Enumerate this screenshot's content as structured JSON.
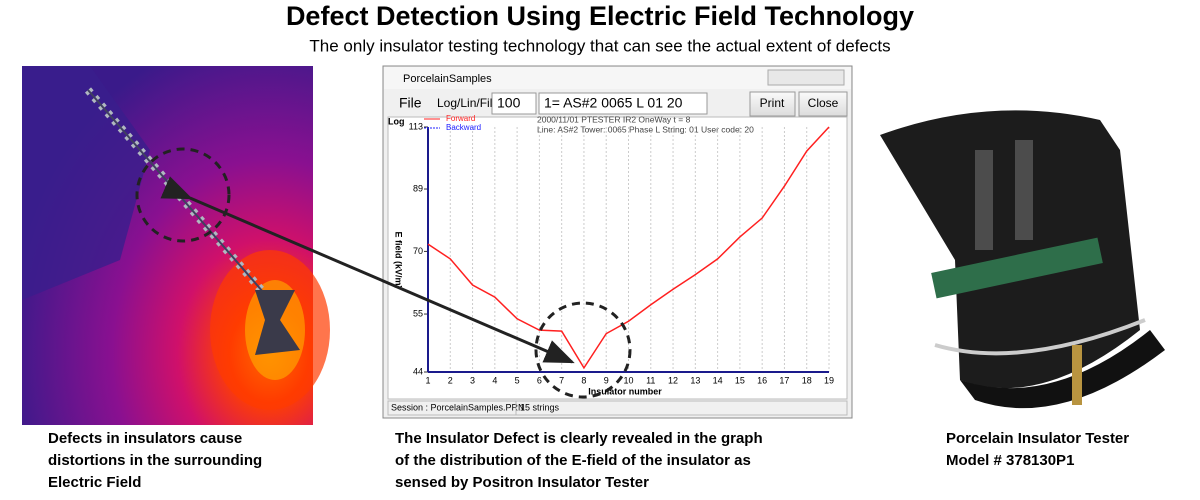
{
  "header": {
    "title": "Defect Detection Using Electric Field Technology",
    "subtitle": "The only insulator testing technology that can see the actual extent of defects"
  },
  "captions": {
    "left": [
      "Defects in insulators cause",
      "distortions in the surrounding",
      "Electric Field"
    ],
    "center": [
      "The Insulator Defect is clearly revealed in the graph",
      "of the distribution of the E-field of the insulator as",
      "sensed by Positron Insulator Tester"
    ],
    "right": [
      "Porcelain Insulator Tester",
      "Model # 378130P1"
    ]
  },
  "window": {
    "title": "PorcelainSamples",
    "menu": "File",
    "mode": "Log/Lin/Fil",
    "count": "100",
    "selection": "1= AS#2 0065 L 01 20",
    "buttons": [
      "Print",
      "Close"
    ],
    "info": [
      "2000/11/01 PTESTER IR2 OneWay    t = 8",
      "Line: AS#2 Tower: 0065 Phase L String: 01 User code: 20"
    ],
    "scale_label": "Log",
    "status": [
      "Session : PorcelainSamples.PRN",
      "15 strings"
    ]
  },
  "chart_data": {
    "type": "line",
    "x_label": "Insulator number",
    "y_label": "E field (kV/m)",
    "x": [
      1,
      2,
      3,
      4,
      5,
      6,
      7,
      8,
      9,
      10,
      11,
      12,
      13,
      14,
      15,
      16,
      17,
      18,
      19
    ],
    "series": [
      {
        "name": "Forward",
        "color": "#ff2020",
        "values": [
          72,
          68,
          61.5,
          58.7,
          54,
          51.7,
          51.5,
          44.7,
          51,
          53.5,
          57,
          60.5,
          64,
          68,
          74,
          79.6,
          90,
          103,
          113
        ]
      },
      {
        "name": "Backward",
        "color": "#2020ff",
        "values": [
          null,
          null,
          null,
          null,
          null,
          null,
          null,
          null,
          null,
          null,
          null,
          null,
          null,
          null,
          null,
          null,
          null,
          null,
          null
        ]
      }
    ],
    "xlim": [
      1,
      19
    ],
    "xticks": [
      1,
      2,
      3,
      4,
      5,
      6,
      7,
      8,
      9,
      10,
      11,
      12,
      13,
      14,
      15,
      16,
      17,
      18,
      19
    ],
    "ylim": [
      44,
      113
    ],
    "yticks": [
      44,
      55,
      70,
      89,
      113
    ],
    "log_scale": true,
    "grid": true,
    "axis_color": "#1a1a8c"
  }
}
